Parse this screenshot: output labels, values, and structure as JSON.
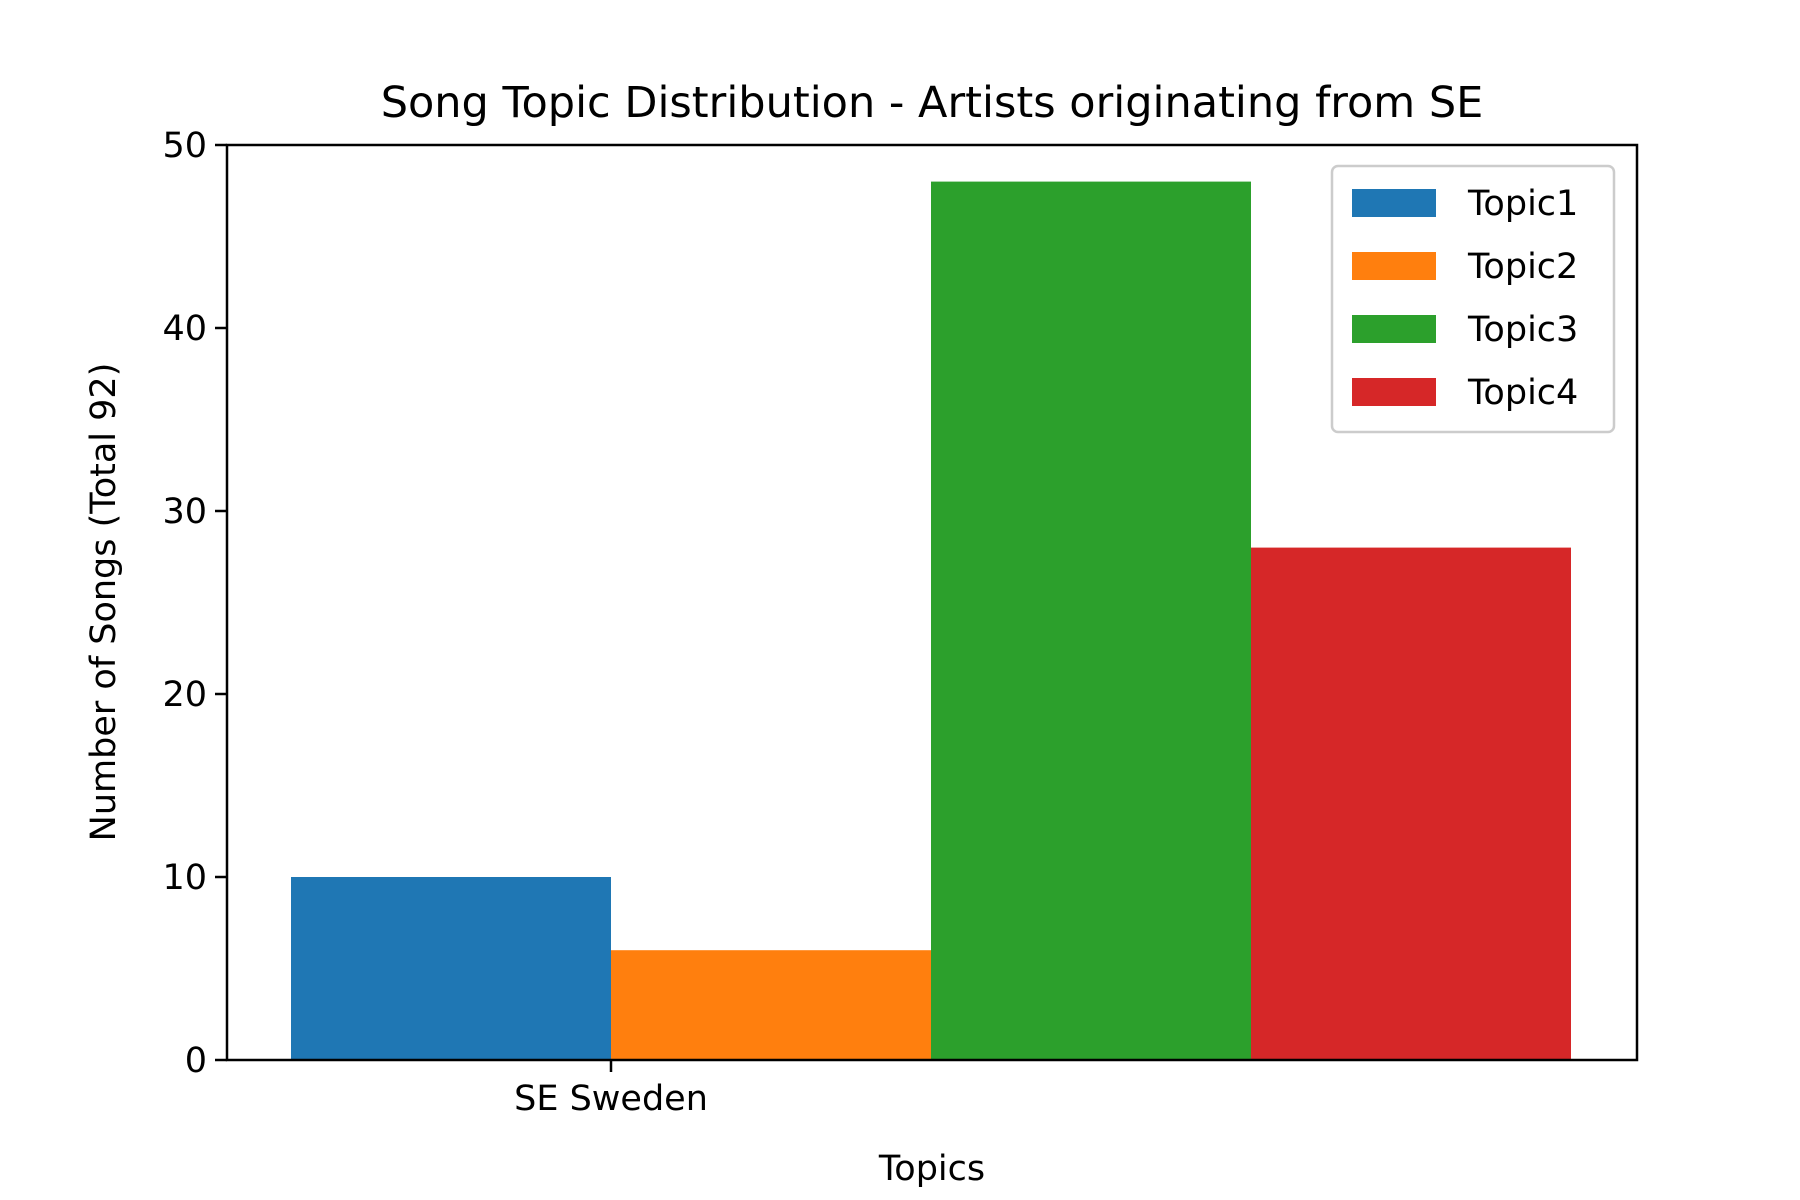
{
  "chart_data": {
    "type": "bar",
    "title": "Song Topic Distribution - Artists originating from SE",
    "xlabel": "Topics",
    "ylabel": "Number of Songs (Total 92)",
    "categories": [
      "SE Sweden"
    ],
    "series": [
      {
        "name": "Topic1",
        "color": "#1f77b4",
        "values": [
          10
        ]
      },
      {
        "name": "Topic2",
        "color": "#ff7f0e",
        "values": [
          6
        ]
      },
      {
        "name": "Topic3",
        "color": "#2ca02c",
        "values": [
          48
        ]
      },
      {
        "name": "Topic4",
        "color": "#d62728",
        "values": [
          28
        ]
      }
    ],
    "ylim": [
      0,
      50
    ],
    "yticks": [
      "0",
      "10",
      "20",
      "30",
      "40",
      "50"
    ],
    "grid": false,
    "legend_position": "top-right"
  }
}
